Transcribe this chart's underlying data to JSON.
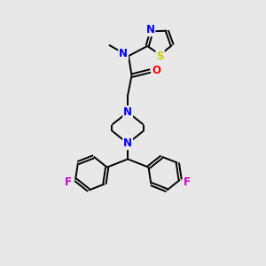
{
  "bg_color": "#e8e8e8",
  "atom_colors": {
    "C": "#000000",
    "N": "#0000ff",
    "O": "#ff0000",
    "S": "#cccc00",
    "F": "#cc00cc",
    "H": "#000000"
  },
  "bond_color": "#000000",
  "lw": 1.4,
  "fontsize": 8.5
}
